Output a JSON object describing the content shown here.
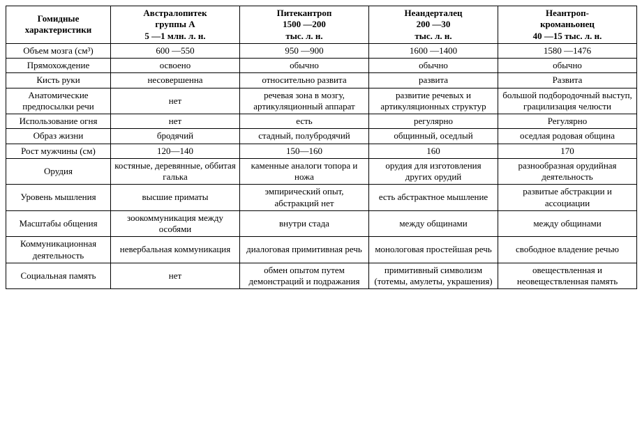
{
  "table": {
    "background_color": "#ffffff",
    "border_color": "#000000",
    "font_family": "Times New Roman",
    "header_fontsize": 13,
    "cell_fontsize": 13,
    "columns": [
      {
        "line1": "Гомидные",
        "line2": "характеристики",
        "line3": ""
      },
      {
        "line1": "Австралопитек",
        "line2": "группы А",
        "line3": "5 —1 млн. л. н."
      },
      {
        "line1": "Питекантроп",
        "line2": "1500 —200",
        "line3": "тыс. л. н."
      },
      {
        "line1": "Неандерталец",
        "line2": "200 —30",
        "line3": "тыс. л. н."
      },
      {
        "line1": "Неантроп-",
        "line2": "кроманьонец",
        "line3": "40 —15 тыс. л. н."
      }
    ],
    "rows": [
      [
        "Объем мозга (см³)",
        "600 —550",
        "950 —900",
        "1600 —1400",
        "1580 —1476"
      ],
      [
        "Прямохождение",
        "освоено",
        "обычно",
        "обычно",
        "обычно"
      ],
      [
        "Кисть руки",
        "несовершенна",
        "относительно развита",
        "развита",
        "Развита"
      ],
      [
        "Анатомические предпосылки речи",
        "нет",
        "речевая зона в мозгу, артикуляционный аппарат",
        "развитие речевых и артикуляционных структур",
        "большой подбородочный выступ, грацилизация челюсти"
      ],
      [
        "Использование огня",
        "нет",
        "есть",
        "регулярно",
        "Регулярно"
      ],
      [
        "Образ жизни",
        "бродячий",
        "стадный, полубродячий",
        "общинный, оседлый",
        "оседлая родовая община"
      ],
      [
        "Рост мужчины (см)",
        "120—140",
        "150—160",
        "160",
        "170"
      ],
      [
        "Орудия",
        "костяные, деревянные, оббитая галька",
        "каменные аналоги топора и ножа",
        "орудия для изготовления других орудий",
        "разнообразная орудийная деятельность"
      ],
      [
        "Уровень мышления",
        "высшие приматы",
        "эмпирический опыт, абстракций нет",
        "есть абстрактное мышление",
        "развитые абстракции и ассоциации"
      ],
      [
        "Масштабы общения",
        "зоокоммуникация между особями",
        "внутри стада",
        "между общинами",
        "между общинами"
      ],
      [
        "Коммуникационная деятельность",
        "невербальная коммуникация",
        "диалоговая примитивная речь",
        "монологовая простейшая речь",
        "свободное владение речью"
      ],
      [
        "Социальная память",
        "нет",
        "обмен опытом путем демонстраций и подражания",
        "примитивный символизм (тотемы, амулеты, украшения)",
        "овеществленная и неовеществленная память"
      ]
    ]
  }
}
